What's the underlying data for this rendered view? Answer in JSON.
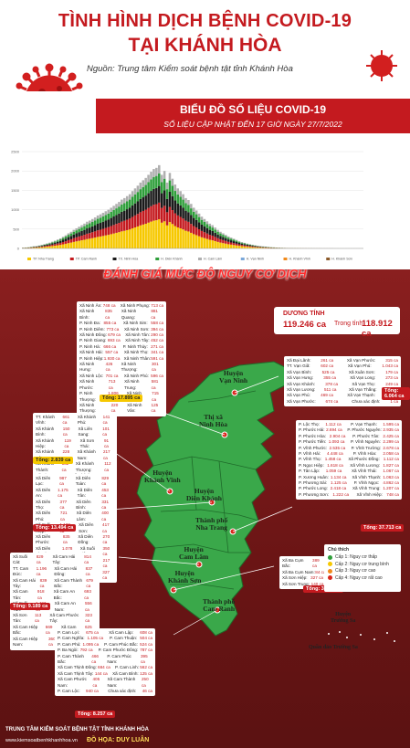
{
  "header": {
    "title_line1": "TÌNH HÌNH DỊCH BỆNH COVID-19",
    "title_line2": "TẠI KHÁNH HÒA",
    "source": "Nguồn: Trung tâm Kiểm soát bệnh tật tỉnh Khánh Hòa"
  },
  "banner": {
    "title": "BIỂU ĐỒ SỐ LIỆU COVID-19",
    "subtitle": "SỐ LIỆU CẬP NHẬT ĐẾN 17 GIỜ NGÀY 27/7/2022"
  },
  "assessment_title": "ĐÁNH GIÁ MỨC ĐỘ NGUY CƠ DỊCH",
  "stats": {
    "positive_label": "DƯƠNG TÍNH",
    "positive_value": "119.246 ca",
    "community_label": "Trong tỉnh",
    "community_value": "118.912 ca"
  },
  "legend": {
    "title": "Chú thích",
    "items": [
      {
        "label": "Cấp 1: Nguy cơ thấp",
        "color": "#2e9e3a"
      },
      {
        "label": "Cấp 2: Nguy cơ trung bình",
        "color": "#f6c800"
      },
      {
        "label": "Cấp 3: Nguy cơ cao",
        "color": "#f08a1c"
      },
      {
        "label": "Cấp 4: Nguy cơ rất cao",
        "color": "#d9261c"
      }
    ]
  },
  "map_labels": {
    "van_ninh": "Huyện\nVạn Ninh",
    "ninh_hoa": "Thị xã\nNinh Hòa",
    "khanh_vinh": "Huyện\nKhánh Vĩnh",
    "dien_khanh": "Huyện\nDiên Khánh",
    "nha_trang": "Thành phố\nNha Trang",
    "cam_lam": "Huyện\nCam Lâm",
    "khanh_son": "Huyện\nKhánh Sơn",
    "cam_ranh": "Thành phố\nCam Ranh",
    "truong_sa_district": "Huyện\nTrường Sa",
    "truong_sa_islands": "Quần đảo Trường Sa"
  },
  "totals": {
    "ninh_hoa": "Tổng: 17.895 ca",
    "van_ninh": "Tổng: 6.064 ca",
    "khanh_vinh": "Tổng: 2.839 ca",
    "nha_trang": "Tổng: 37.713 ca",
    "dien_khanh": "Tổng: 13.494 ca",
    "cam_lam": "Tổng: 9.189 ca",
    "khanh_son": "Tổng: 3.361 ca",
    "cam_ranh": "Tổng: 8.257 ca"
  },
  "boxes": {
    "ninh_hoa": [
      [
        "Xã Ninh Ân:",
        "748 ca",
        "Xã Ninh Phụng:",
        "713 ca"
      ],
      [
        "Xã Ninh Bình:",
        "835 ca",
        "Xã Ninh Quang:",
        "881 ca"
      ],
      [
        "P. Ninh Đa:",
        "855 ca",
        "Xã Ninh Sim:",
        "558 ca"
      ],
      [
        "P. Ninh Diêm:",
        "773 ca",
        "Xã Ninh Sơn:",
        "394 ca"
      ],
      [
        "Xã Ninh Đông:",
        "679 ca",
        "Xã Ninh Tân:",
        "290 ca"
      ],
      [
        "P. Ninh Giang:",
        "693 ca",
        "Xã Ninh Tây:",
        "452 ca"
      ],
      [
        "P. Ninh Hà:",
        "666 ca",
        "P. Ninh Thủy:",
        "271 ca"
      ],
      [
        "Xã Ninh Hải:",
        "557 ca",
        "Xã Ninh Thọ:",
        "341 ca"
      ],
      [
        "P. Ninh Hiệp:",
        "1.930 ca",
        "Xã Ninh Thân:",
        "591 ca"
      ],
      [
        "Xã Ninh Hưng:",
        "426 ca",
        "Xã Ninh Thượng:",
        "301 ca"
      ],
      [
        "Xã Ninh Lộc:",
        "701 ca",
        "Xã Ninh Phú:",
        "596 ca"
      ],
      [
        "Xã Ninh Phước:",
        "713 ca",
        "Xã Ninh Trung:",
        "581 ca"
      ],
      [
        "P. Ninh Thượng:",
        "1.806 ca",
        "Xã Ninh Xuân:",
        "715 ca"
      ],
      [
        "Xã Ninh Thượng:",
        "220 ca",
        "Xã Ninh Vân:",
        "125 ca"
      ]
    ],
    "van_ninh": [
      [
        "Xã Đại Lãnh:",
        "261 ca",
        "Xã Vạn Phước:",
        "315 ca"
      ],
      [
        "TT. Vạn Giã:",
        "602 ca",
        "Xã Vạn Phú:",
        "1.043 ca"
      ],
      [
        "Xã Vạn Bình:",
        "525 ca",
        "Xã Xuân Sơn:",
        "179 ca"
      ],
      [
        "Xã Vạn Hưng:",
        "355 ca",
        "Xã Vạn Long:",
        "273 ca"
      ],
      [
        "Xã Vạn Khánh:",
        "378 ca",
        "Xã Vạn Thọ:",
        "249 ca"
      ],
      [
        "Xã Vạn Lương:",
        "511 ca",
        "Xã Vạn Thắng:",
        "434 ca"
      ],
      [
        "Xã Vạn Phú:",
        "469 ca",
        "Xã Vạn Thạnh:",
        "155 ca"
      ],
      [
        "Xã Vạn Phước:",
        "674 ca",
        "Chưa xác định:",
        "1 ca"
      ]
    ],
    "khanh_vinh": [
      [
        "TT. Khánh Vĩnh:",
        "661 ca",
        "Xã Khánh Phú:",
        "141 ca"
      ],
      [
        "Xã Khánh Bình:",
        "150 ca",
        "Xã Liên Sang:",
        "101 ca"
      ],
      [
        "Xã Khánh Hiệp:",
        "119 ca",
        "Xã Sơn Thái:",
        "91 ca"
      ],
      [
        "Xã Khánh Đông:",
        "228 ca",
        "Xã Khánh Nam:",
        "217 ca"
      ],
      [
        "Xã Khánh Thành:",
        "182 ca",
        "Xã Khánh Thượng:",
        "112 ca"
      ],
      [
        "Xã Giang Ly:",
        "9 ca",
        "Xã Khánh Trung:",
        "91 ca"
      ]
    ],
    "nha_trang": [
      [
        "P. Lộc Thọ:",
        "1.112 ca",
        "P. Vạn Thạnh:",
        "1.595 ca"
      ],
      [
        "P. Phước Hải:",
        "2.694 ca",
        "P. Phước Nguyên:",
        "2.935 ca"
      ],
      [
        "P. Phước Hòa:",
        "2.904 ca",
        "P. Phước Tân:",
        "2.425 ca"
      ],
      [
        "P. Phước Tiến:",
        "1.093 ca",
        "P. Vĩnh Nguyên:",
        "2.299 ca"
      ],
      [
        "P. Vĩnh Phước:",
        "2.535 ca",
        "P. Vĩnh Trường:",
        "2.678 ca"
      ],
      [
        "P. Vĩnh Hải:",
        "4.448 ca",
        "P. Vĩnh Hòa:",
        "2.058 ca"
      ],
      [
        "P. Vĩnh Thọ:",
        "1.458 ca",
        "Xã Phước Đồng:",
        "1.112 ca"
      ],
      [
        "P. Ngọc Hiệp:",
        "1.618 ca",
        "Xã Vĩnh Lương:",
        "1.827 ca"
      ],
      [
        "P. Tân Lập:",
        "1.059 ca",
        "Xã Vĩnh Thái:",
        "1.067 ca"
      ],
      [
        "P. Xương Huân:",
        "1.134 ca",
        "Xã Vĩnh Thạnh:",
        "1.063 ca"
      ],
      [
        "P. Phương Sài:",
        "1.125 ca",
        "P. Vĩnh Ngọc:",
        "4.862 ca"
      ],
      [
        "P. Phước Long:",
        "2.418 ca",
        "Xã Vĩnh Trung:",
        "1.207 ca"
      ],
      [
        "P. Phương Sơn:",
        "1.222 ca",
        "Xã Vĩnh Hiệp:",
        "748 ca"
      ]
    ],
    "dien_khanh": [
      [
        "Xã Diên Lạc:",
        "987 ca",
        "Xã Diên Toàn:",
        "829 ca"
      ],
      [
        "Xã Diên An:",
        "1.175 ca",
        "Xã Diên Tân:",
        "453 ca"
      ],
      [
        "Xã Diên Thọ:",
        "377 ca",
        "Xã Diên Bình:",
        "331 ca"
      ],
      [
        "Xã Diên Phú:",
        "721 ca",
        "Xã Diên Lâm:",
        "400 ca"
      ],
      [
        "Xã Suối Hiệp:",
        "1.108 ca",
        "Xã Diên Sơn:",
        "417 ca"
      ],
      [
        "Xã Diên Phước:",
        "835 ca",
        "Xã Diên Đồng:",
        "270 ca"
      ],
      [
        "Xã Diên Thạnh:",
        "1.078 ca",
        "Xã Suối Tiên:",
        "350 ca"
      ],
      [
        "TT. Diên Khánh:",
        "1.040 ca",
        "Xã Diên Tân:",
        "217 ca"
      ],
      [
        "Xã Diên Điền:",
        "1.119 ca",
        "Xã Diên Xuân:",
        "327 ca"
      ]
    ],
    "cam_lam": [
      [
        "Xã Suối Cát:",
        "829 ca",
        "Xã Cam Hải Tây:",
        "814 ca"
      ],
      [
        "TT. Cam Đức:",
        "1.196 ca",
        "Xã Cam Hải Đông:",
        "837 ca"
      ],
      [
        "Xã Cam Hải Tây:",
        "839 ca",
        "Xã Cam Thành Bắc:",
        "679 ca"
      ],
      [
        "Xã Cam Tân:",
        "918 ca",
        "Xã Cam An Bắc:",
        "693 ca"
      ],
      [
        "Xã Suối Tân:",
        "1.403 ca",
        "Xã Cam An Nam:",
        "556 ca"
      ],
      [
        "Xã Sơn Tân:",
        "113 ca",
        "Xã Cam Phước Tây:",
        "323 ca"
      ],
      [
        "Xã Cam Hiệp Bắc:",
        "669 ca",
        "Xã Cam Hòa:",
        "625 ca"
      ],
      [
        "Xã Cam Hiệp Nam:",
        "360 ca",
        "NVYT BVĐK:",
        "5 ca"
      ]
    ],
    "khanh_son": [
      [
        "Xã Ba Cụm Bắc:",
        "389 ca",
        "Xã Thành Sơn:",
        "235 ca"
      ],
      [
        "Xã Ba Cụm Nam:",
        "84 ca",
        "Xã Sơn Bình:",
        "222 ca"
      ],
      [
        "Xã Sơn Hiệp:",
        "327 ca",
        "TT. Tô Hạp:",
        "648 ca"
      ],
      [
        "Xã Sơn Trung:",
        "140 ca",
        "Xã Sơn Lâm:",
        "212 ca"
      ]
    ],
    "cam_ranh": [
      [
        "P. Cam Lợi:",
        "675 ca",
        "Xã Cam Lập:",
        "608 ca"
      ],
      [
        "P. Cam Nghĩa:",
        "1.105 ca",
        "P. Cam Thuận:",
        "504 ca"
      ],
      [
        "P. Cam Phú:",
        "1.095 ca",
        "P. Cam Phúc Bắc:",
        "524 ca"
      ],
      [
        "P. Ba Ngòi:",
        "792 ca",
        "P. Cam Phước Đông:",
        "787 ca"
      ],
      [
        "P. Cam Thành Bắc:",
        "466 ca",
        "P. Cam Phúc Nam:",
        "395 ca"
      ],
      [
        "Xã Cam Thịnh Đông:",
        "684 ca",
        "P. Cam Linh:",
        "562 ca"
      ],
      [
        "Xã Cam Thịnh Tây:",
        "144 ca",
        "Xã Cam Bình:",
        "125 ca"
      ],
      [
        "Xã Cam Phước Nam:",
        "405 ca",
        "Xã Cam Thành Nam:",
        "250 ca"
      ],
      [
        "P. Cam Lộc:",
        "940 ca",
        "Chưa xác định:",
        "46 ca"
      ]
    ]
  },
  "chart_data": {
    "type": "bar",
    "title": "",
    "y_ticks": [
      "0",
      "500",
      "1000",
      "1500",
      "2000",
      "2500"
    ],
    "ylim": [
      0,
      2500
    ],
    "stacked": true,
    "series_colors": [
      "#f6c800",
      "#c41a1f",
      "#1a1a1a",
      "#2e9e3a",
      "#b0b0b0"
    ],
    "legend": [
      "TP. Nha Trang",
      "TP. Cam Ranh",
      "TX. Ninh Hòa",
      "H. Diên Khánh",
      "H. Cam Lâm",
      "H. Vạn Ninh",
      "H. Khánh Vĩnh",
      "H. Khánh Sơn"
    ],
    "values": [
      20,
      25,
      30,
      40,
      55,
      60,
      75,
      90,
      110,
      130,
      150,
      175,
      200,
      230,
      260,
      300,
      340,
      390,
      430,
      480,
      520,
      560,
      600,
      640,
      690,
      720,
      760,
      800,
      850,
      880,
      920,
      960,
      1000,
      1050,
      1100,
      1150,
      1200,
      1260,
      1300,
      1350,
      1400,
      1480,
      1550,
      1620,
      1700,
      1760,
      1820,
      1900,
      1980,
      2050,
      2080,
      2150,
      1900,
      2000,
      1700,
      1950,
      1800,
      1650,
      1550,
      1480,
      1400,
      1300,
      1250,
      1150,
      1050,
      980,
      900,
      820,
      760,
      700,
      640,
      600,
      540,
      480,
      430,
      390,
      350,
      310,
      280,
      250,
      220,
      190,
      165,
      145,
      125,
      110,
      95,
      80,
      70,
      60,
      52,
      45,
      38,
      32,
      28,
      24,
      20,
      17,
      14,
      12,
      10,
      9,
      8,
      7,
      6,
      5,
      5,
      4,
      4,
      3,
      3,
      3,
      2,
      2,
      2,
      2,
      2,
      1,
      1,
      1,
      1,
      1,
      1,
      1,
      1,
      1,
      1,
      1
    ]
  },
  "footer": {
    "org": "TRUNG TÂM KIỂM SOÁT BỆNH TẬT TỈNH KHÁNH HÒA",
    "site": "www.kiemsoatbenhkhanhhoa.vn",
    "design": "ĐỒ HỌA: DUY LUÂN"
  }
}
